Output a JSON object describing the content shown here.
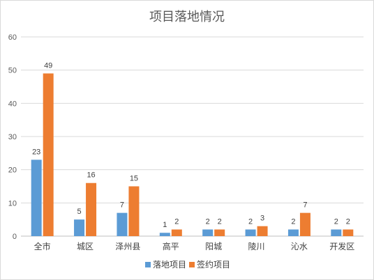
{
  "chart_data": {
    "type": "bar",
    "title": "项目落地情况",
    "categories": [
      "全市",
      "城区",
      "泽州县",
      "高平",
      "阳城",
      "陵川",
      "沁水",
      "开发区"
    ],
    "series": [
      {
        "name": "落地项目",
        "color": "#5B9BD5",
        "values": [
          23,
          5,
          7,
          1,
          2,
          2,
          2,
          2
        ]
      },
      {
        "name": "签约项目",
        "color": "#ED7D31",
        "values": [
          49,
          16,
          15,
          2,
          2,
          3,
          7,
          2
        ]
      }
    ],
    "ylim": [
      0,
      60
    ],
    "yticks": [
      0,
      10,
      20,
      30,
      40,
      50,
      60
    ],
    "grid": true,
    "legend_position": "bottom"
  }
}
